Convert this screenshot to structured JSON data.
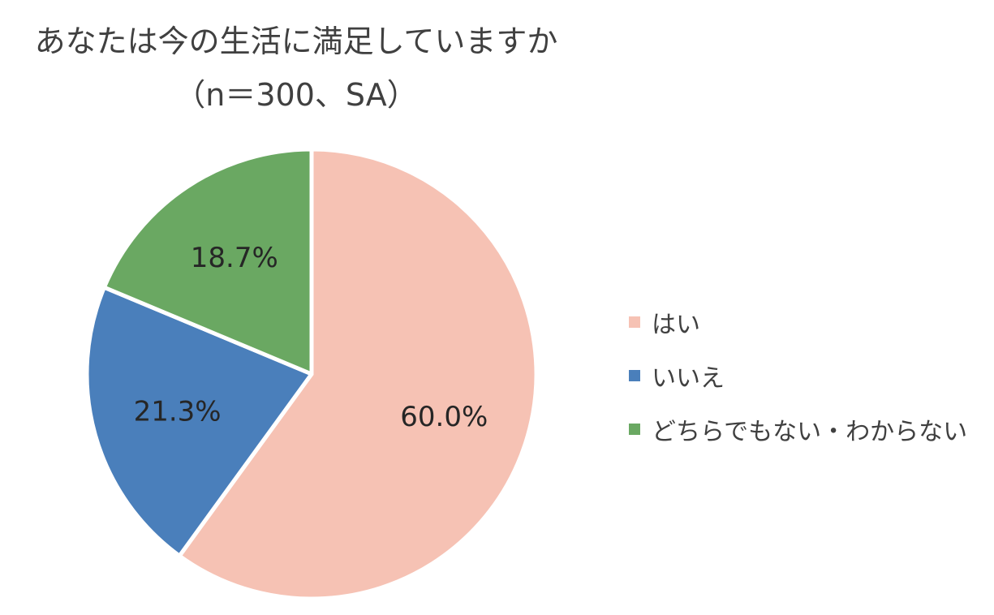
{
  "chart_data": {
    "type": "pie",
    "title_lines": [
      "あなたは今の生活に満足していますか",
      "（n＝300、SA）"
    ],
    "slices": [
      {
        "label": "はい",
        "value": 60.0,
        "display": "60.0%",
        "color": "#F6C2B4"
      },
      {
        "label": "いいえ",
        "value": 21.3,
        "display": "21.3%",
        "color": "#4A7FBB"
      },
      {
        "label": "どちらでもない・わからない",
        "value": 18.7,
        "display": "18.7%",
        "color": "#6AA862"
      }
    ],
    "start_angle": "12 o'clock",
    "direction": "clockwise",
    "legend_position": "right"
  }
}
